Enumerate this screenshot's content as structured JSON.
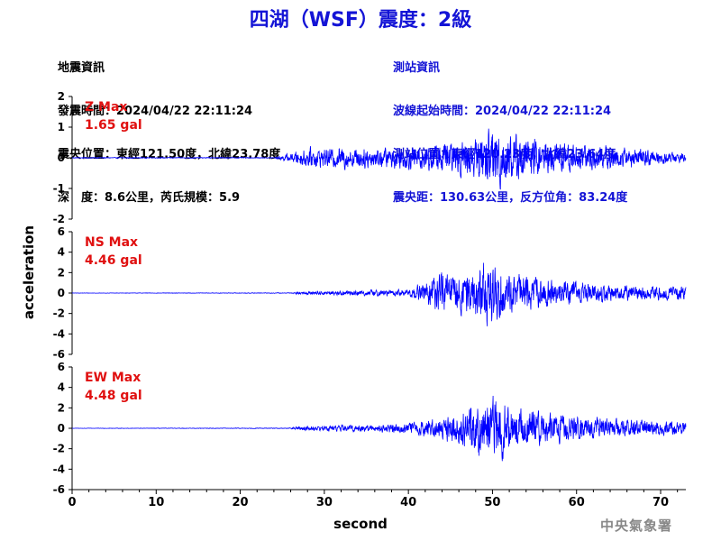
{
  "title": "四湖（WSF）震度：2級",
  "event_info": {
    "heading": "地震資訊",
    "time": "發震時間：2024/04/22 22:11:24",
    "epicenter": "震央位置：東經121.50度，北緯23.78度",
    "depth_mag": "深　度：8.6公里，芮氏規模：5.9"
  },
  "station_info": {
    "heading": "測站資訊",
    "start_time": "波線起始時間：2024/04/22 22:11:24",
    "location": "測站位置：東經120.23度，北緯23.64度",
    "distance": "震央距：130.63公里，反方位角：83.24度"
  },
  "watermark": "中央氣象署",
  "chart_data": {
    "type": "line",
    "xlabel": "second",
    "ylabel": "acceleration",
    "xlim": [
      0,
      73
    ],
    "xticks": [
      0,
      10,
      20,
      30,
      40,
      50,
      60,
      70
    ],
    "line_color": "#0000ff",
    "max_label_color": "#e01010",
    "panels": [
      {
        "name": "Z Max",
        "max_value": "1.65 gal",
        "ylim": [
          -2,
          2
        ],
        "yticks": [
          -2,
          -1,
          0,
          1,
          2
        ],
        "envelope": [
          [
            0,
            0.02
          ],
          [
            24,
            0.02
          ],
          [
            25,
            0.12
          ],
          [
            26,
            0.2
          ],
          [
            28,
            0.45
          ],
          [
            30,
            0.4
          ],
          [
            32,
            0.5
          ],
          [
            36,
            0.45
          ],
          [
            40,
            0.5
          ],
          [
            44,
            0.7
          ],
          [
            48,
            0.8
          ],
          [
            50,
            1.5
          ],
          [
            53,
            1.0
          ],
          [
            56,
            0.75
          ],
          [
            60,
            0.6
          ],
          [
            65,
            0.5
          ],
          [
            70,
            0.3
          ],
          [
            73,
            0.2
          ]
        ]
      },
      {
        "name": "NS Max",
        "max_value": "4.46 gal",
        "ylim": [
          -6,
          6
        ],
        "yticks": [
          -6,
          -4,
          -2,
          0,
          2,
          4,
          6
        ],
        "envelope": [
          [
            0,
            0.02
          ],
          [
            26,
            0.04
          ],
          [
            27,
            0.2
          ],
          [
            33,
            0.35
          ],
          [
            40,
            0.5
          ],
          [
            42,
            1.5
          ],
          [
            43,
            2.5
          ],
          [
            46,
            2.5
          ],
          [
            50,
            4.4
          ],
          [
            52,
            2.5
          ],
          [
            55,
            2.2
          ],
          [
            58,
            1.4
          ],
          [
            60,
            1.5
          ],
          [
            64,
            1.1
          ],
          [
            70,
            0.9
          ],
          [
            73,
            1.0
          ]
        ]
      },
      {
        "name": "EW Max",
        "max_value": "4.48 gal",
        "ylim": [
          -6,
          6
        ],
        "yticks": [
          -6,
          -4,
          -2,
          0,
          2,
          4,
          6
        ],
        "envelope": [
          [
            0,
            0.02
          ],
          [
            26,
            0.05
          ],
          [
            27,
            0.3
          ],
          [
            35,
            0.5
          ],
          [
            40,
            0.7
          ],
          [
            43,
            1.3
          ],
          [
            46,
            2.2
          ],
          [
            48,
            3.5
          ],
          [
            50,
            4.4
          ],
          [
            53,
            2.6
          ],
          [
            56,
            2.0
          ],
          [
            60,
            1.6
          ],
          [
            65,
            1.2
          ],
          [
            70,
            1.0
          ],
          [
            73,
            0.8
          ]
        ]
      }
    ]
  }
}
